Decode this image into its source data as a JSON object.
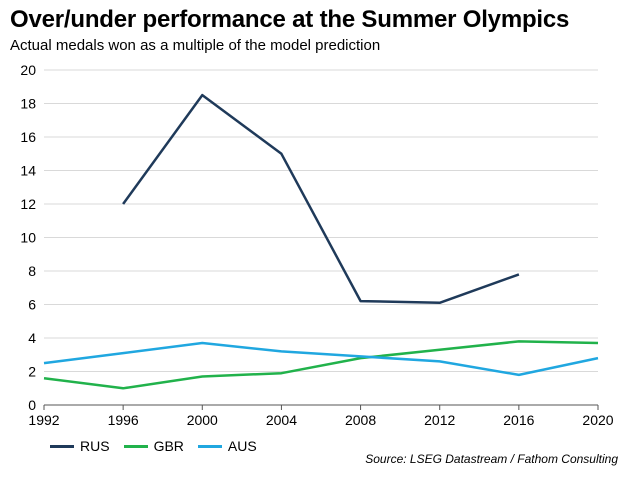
{
  "chart_data": {
    "type": "line",
    "title": "Over/under performance at the Summer Olympics",
    "subtitle": "Actual medals won as a multiple of the model prediction",
    "xlabel": "",
    "ylabel": "",
    "x": [
      "1992",
      "1996",
      "2000",
      "2004",
      "2008",
      "2012",
      "2016",
      "2020"
    ],
    "ylim": [
      0,
      20
    ],
    "yticks": [
      "0",
      "2",
      "4",
      "6",
      "8",
      "10",
      "12",
      "14",
      "16",
      "18",
      "20"
    ],
    "grid": true,
    "legend_position": "bottom-left",
    "series": [
      {
        "name": "RUS",
        "color": "#1f3a5a",
        "values": [
          null,
          12.0,
          18.5,
          15.0,
          6.2,
          6.1,
          7.8,
          null
        ]
      },
      {
        "name": "GBR",
        "color": "#21b24b",
        "values": [
          1.6,
          1.0,
          1.7,
          1.9,
          2.8,
          3.3,
          3.8,
          3.7
        ]
      },
      {
        "name": "AUS",
        "color": "#20a7e0",
        "values": [
          2.5,
          3.1,
          3.7,
          3.2,
          2.9,
          2.6,
          1.8,
          2.8
        ]
      }
    ],
    "source": "Source: LSEG Datastream / Fathom Consulting"
  }
}
